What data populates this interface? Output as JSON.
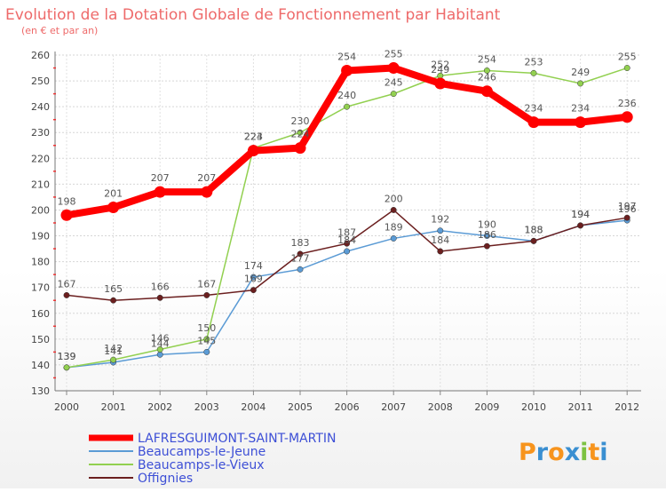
{
  "chart_data": {
    "type": "line",
    "title": "Evolution de la Dotation Globale de Fonctionnement par Habitant",
    "subtitle": "(en € et par an)",
    "x": [
      "2000",
      "2001",
      "2002",
      "2003",
      "2004",
      "2005",
      "2006",
      "2007",
      "2008",
      "2009",
      "2010",
      "2011",
      "2012"
    ],
    "ylim": [
      130,
      260
    ],
    "yticks": [
      130,
      140,
      150,
      160,
      170,
      180,
      190,
      200,
      210,
      220,
      230,
      240,
      250,
      260
    ],
    "grid": true,
    "legend_position": "bottom-left",
    "series": [
      {
        "name": "LAFRESGUIMONT-SAINT-MARTIN",
        "color": "#ff0000",
        "values": [
          198,
          201,
          207,
          207,
          223,
          224,
          254,
          255,
          249,
          246,
          234,
          234,
          236
        ]
      },
      {
        "name": "Beaucamps-le-Jeune",
        "color": "#5b9bd5",
        "values": [
          139,
          141,
          144,
          145,
          174,
          177,
          184,
          189,
          192,
          190,
          188,
          194,
          196
        ]
      },
      {
        "name": "Beaucamps-le-Vieux",
        "color": "#92d050",
        "values": [
          139,
          142,
          146,
          150,
          224,
          230,
          240,
          245,
          252,
          254,
          253,
          249,
          255
        ]
      },
      {
        "name": "Offignies",
        "color": "#6b1f1f",
        "values": [
          167,
          165,
          166,
          167,
          169,
          183,
          187,
          200,
          184,
          186,
          188,
          194,
          197
        ]
      }
    ]
  },
  "logo": {
    "text": "Proxiti"
  }
}
